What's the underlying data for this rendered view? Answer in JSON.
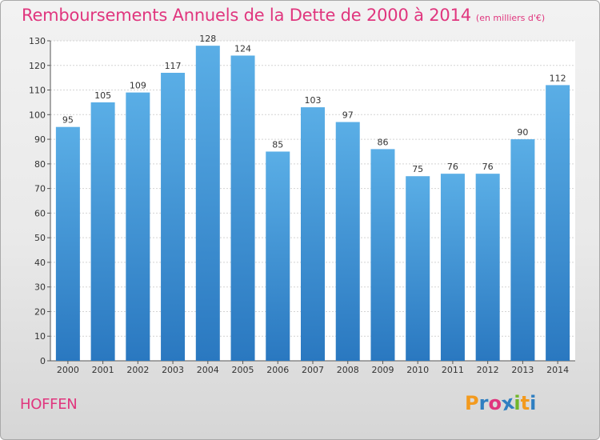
{
  "chart_data": {
    "type": "bar",
    "title": "Remboursements Annuels de la Dette de 2000 à 2014",
    "unit_note": "(en milliers d'€)",
    "categories": [
      "2000",
      "2001",
      "2002",
      "2003",
      "2004",
      "2005",
      "2006",
      "2007",
      "2008",
      "2009",
      "2010",
      "2011",
      "2012",
      "2013",
      "2014"
    ],
    "values": [
      95,
      105,
      109,
      117,
      128,
      124,
      85,
      103,
      97,
      86,
      75,
      76,
      76,
      90,
      112
    ],
    "ylim": [
      0,
      130
    ],
    "yticks": [
      0,
      10,
      20,
      30,
      40,
      50,
      60,
      70,
      80,
      90,
      100,
      110,
      120,
      130
    ],
    "grid": true,
    "bar_color_top": "#5aaee6",
    "bar_color_bottom": "#2a78c0"
  },
  "footer": {
    "city": "HOFFEN",
    "logo_letters": [
      "P",
      "r",
      "o",
      "x",
      "i",
      "t",
      "i"
    ],
    "logo_colors": [
      "#f39a1e",
      "#2f7fc1",
      "#e0367e",
      "#2f7fc1",
      "#71b62a",
      "#f39a1e",
      "#2f7fc1"
    ]
  }
}
